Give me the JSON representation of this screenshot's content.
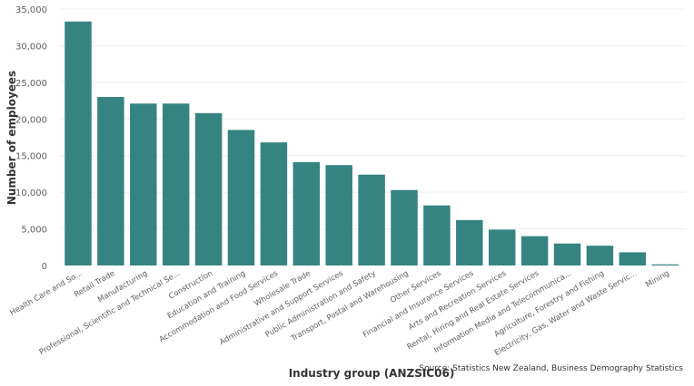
{
  "chart_data": {
    "type": "bar",
    "xlabel": "Industry group (ANZSIC06)",
    "ylabel": "Number of employees",
    "ylim": [
      0,
      35000
    ],
    "yticks": [
      0,
      5000,
      10000,
      15000,
      20000,
      25000,
      30000,
      35000
    ],
    "ytick_labels": [
      "0",
      "5,000",
      "10,000",
      "15,000",
      "20,000",
      "25,000",
      "30,000",
      "35,000"
    ],
    "grid": true,
    "bar_color": "#358482",
    "categories": [
      "Health Care and So...",
      "Retail Trade",
      "Manufacturing",
      "Professional, Scientific and Technical Se...",
      "Construction",
      "Education and Training",
      "Accommodation and Food Services",
      "Wholesale Trade",
      "Administrative and Support Services",
      "Public Administration and Safety",
      "Transport, Postal and Warehousing",
      "Other Services",
      "Financial and Insurance Services",
      "Arts and Recreation Services",
      "Rental, Hiring and Real Estate Services",
      "Information Media and Telecommunica...",
      "Agriculture, Forestry and Fishing",
      "Electricity, Gas, Water and Waste Servic...",
      "Mining"
    ],
    "values": [
      33300,
      23000,
      22100,
      22100,
      20800,
      18500,
      16800,
      14100,
      13700,
      12400,
      10300,
      8200,
      6200,
      4900,
      4000,
      3000,
      2700,
      1800,
      150
    ]
  },
  "source_note": "Source: Statistics New Zealand, Business Demography Statistics"
}
